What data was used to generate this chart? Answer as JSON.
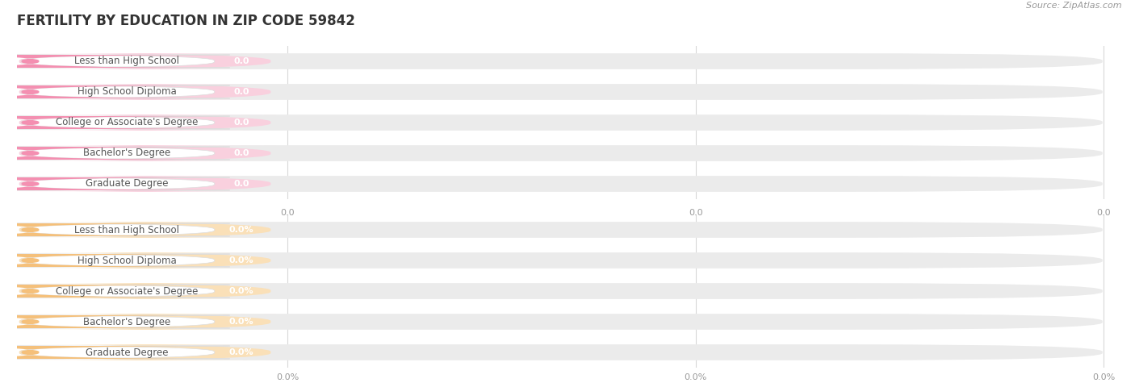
{
  "title": "FERTILITY BY EDUCATION IN ZIP CODE 59842",
  "source": "Source: ZipAtlas.com",
  "categories": [
    "Less than High School",
    "High School Diploma",
    "College or Associate's Degree",
    "Bachelor's Degree",
    "Graduate Degree"
  ],
  "top_values": [
    0.0,
    0.0,
    0.0,
    0.0,
    0.0
  ],
  "bottom_values": [
    0.0,
    0.0,
    0.0,
    0.0,
    0.0
  ],
  "top_bar_color": "#f48fb1",
  "top_bar_bg": "#f9d0de",
  "bottom_bar_color": "#f5c07a",
  "bottom_bar_bg": "#fae0b8",
  "bar_track_color": "#ebebeb",
  "white": "#ffffff",
  "label_text_color": "#555555",
  "value_text_color": "#ffffff",
  "grid_line_color": "#d8d8d8",
  "bg_color": "#ffffff",
  "title_color": "#333333",
  "source_color": "#999999",
  "xtick_color": "#999999",
  "title_fontsize": 12,
  "label_fontsize": 8.5,
  "value_fontsize": 8.0,
  "source_fontsize": 8,
  "xtick_fontsize": 8,
  "figsize": [
    14.06,
    4.75
  ],
  "dpi": 100,
  "top_xticks": [
    "0.0",
    "0.0",
    "0.0"
  ],
  "bottom_xticks": [
    "0.0%",
    "0.0%",
    "0.0%"
  ]
}
